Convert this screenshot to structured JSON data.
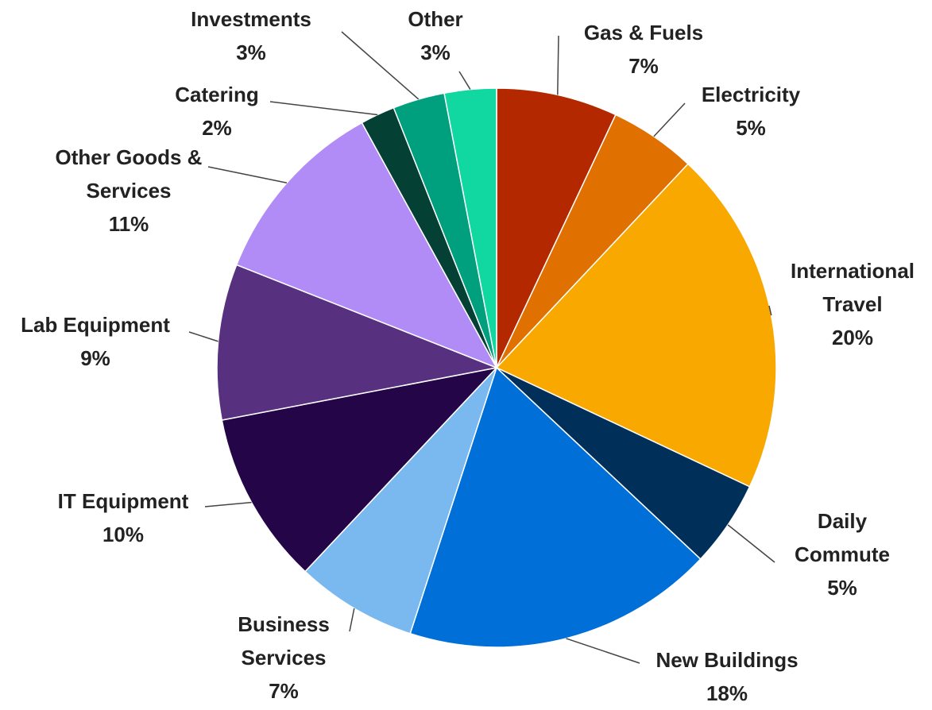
{
  "chart_data": {
    "type": "pie",
    "categories": [
      "Gas & Fuels",
      "Electricity",
      "International Travel",
      "Daily Commute",
      "New Buildings",
      "Business Services",
      "IT Equipment",
      "Lab Equipment",
      "Other Goods & Services",
      "Catering",
      "Investments",
      "Other"
    ],
    "values": [
      7,
      5,
      20,
      5,
      18,
      7,
      10,
      9,
      11,
      2,
      3,
      3
    ],
    "value_labels": [
      "7%",
      "5%",
      "20%",
      "5%",
      "18%",
      "7%",
      "10%",
      "9%",
      "11%",
      "2%",
      "3%",
      "3%"
    ],
    "colors": [
      "#b42800",
      "#e07000",
      "#f9a800",
      "#00305a",
      "#0070d8",
      "#7ab8f0",
      "#230548",
      "#57317f",
      "#b18cf7",
      "#054034",
      "#00a07f",
      "#10d8a0"
    ]
  }
}
